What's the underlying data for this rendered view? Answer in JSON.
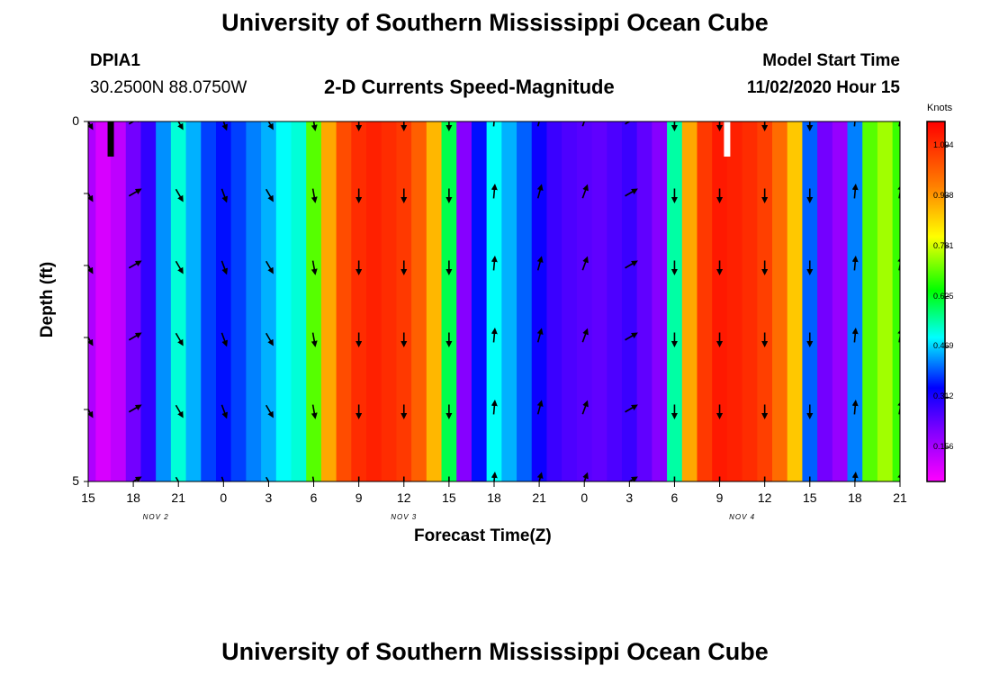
{
  "page": {
    "title_top": "University of Southern Mississippi Ocean Cube",
    "title_bottom": "University of Southern Mississippi Ocean Cube",
    "station": "DPIA1",
    "coords": "30.2500N 88.0750W",
    "subtitle": "2-D Currents Speed-Magnitude",
    "model_start_label": "Model Start Time",
    "model_start_value": "11/02/2020 Hour 15"
  },
  "chart_data": {
    "type": "heatmap",
    "title": "2-D Currents Speed-Magnitude",
    "xlabel": "Forecast Time(Z)",
    "ylabel": "Depth (ft)",
    "x_range": [
      0,
      54
    ],
    "y_range": [
      0,
      5
    ],
    "x_ticks": [
      {
        "t": 0,
        "label": "15"
      },
      {
        "t": 3,
        "label": "18"
      },
      {
        "t": 6,
        "label": "21"
      },
      {
        "t": 9,
        "label": "0"
      },
      {
        "t": 12,
        "label": "3"
      },
      {
        "t": 15,
        "label": "6"
      },
      {
        "t": 18,
        "label": "9"
      },
      {
        "t": 21,
        "label": "12"
      },
      {
        "t": 24,
        "label": "15"
      },
      {
        "t": 27,
        "label": "18"
      },
      {
        "t": 30,
        "label": "21"
      },
      {
        "t": 33,
        "label": "0"
      },
      {
        "t": 36,
        "label": "3"
      },
      {
        "t": 39,
        "label": "6"
      },
      {
        "t": 42,
        "label": "9"
      },
      {
        "t": 45,
        "label": "12"
      },
      {
        "t": 48,
        "label": "15"
      },
      {
        "t": 51,
        "label": "18"
      },
      {
        "t": 54,
        "label": "21"
      }
    ],
    "y_ticks": [
      {
        "d": 0,
        "label": "0"
      },
      {
        "d": 5,
        "label": "5"
      }
    ],
    "date_labels": [
      {
        "t": 4.5,
        "label": "NOV 2"
      },
      {
        "t": 21,
        "label": "NOV 3"
      },
      {
        "t": 43.5,
        "label": "NOV 4"
      }
    ],
    "colorbar": {
      "units": "Knots",
      "min": 0.05,
      "max": 1.17,
      "ticks": [
        0.156,
        0.312,
        0.469,
        0.625,
        0.781,
        0.938,
        1.094
      ],
      "tick_labels": [
        "0.156",
        "0.312",
        "0.469",
        "0.625",
        "0.781",
        "0.938",
        "1.094"
      ]
    },
    "speed_profile": {
      "t": [
        0,
        1,
        2,
        3,
        4,
        5,
        6,
        7,
        8,
        9,
        10,
        11,
        12,
        13,
        14,
        15,
        16,
        17,
        18,
        19,
        20,
        21,
        22,
        23,
        24,
        25,
        26,
        27,
        28,
        29,
        30,
        31,
        32,
        33,
        34,
        35,
        36,
        37,
        38,
        39,
        40,
        41,
        42,
        43,
        44,
        45,
        46,
        47,
        48,
        49,
        50,
        51,
        52,
        53,
        54
      ],
      "speed": [
        0.15,
        0.1,
        0.13,
        0.22,
        0.29,
        0.43,
        0.52,
        0.45,
        0.38,
        0.35,
        0.38,
        0.42,
        0.45,
        0.5,
        0.52,
        0.7,
        0.92,
        1.05,
        1.1,
        1.12,
        1.1,
        1.08,
        1.02,
        0.9,
        0.6,
        0.2,
        0.35,
        0.5,
        0.45,
        0.4,
        0.33,
        0.28,
        0.26,
        0.25,
        0.24,
        0.26,
        0.28,
        0.24,
        0.2,
        0.55,
        0.92,
        1.08,
        1.13,
        1.12,
        1.1,
        1.07,
        1.0,
        0.88,
        0.4,
        0.22,
        0.18,
        0.42,
        0.7,
        0.75,
        0.68
      ]
    },
    "arrows": {
      "depths": [
        0,
        1,
        2,
        3,
        4,
        5
      ],
      "times": [
        {
          "t": 0,
          "angle": 150
        },
        {
          "t": 3,
          "angle": 60
        },
        {
          "t": 6,
          "angle": 150
        },
        {
          "t": 9,
          "angle": 160
        },
        {
          "t": 12,
          "angle": 150
        },
        {
          "t": 15,
          "angle": 170
        },
        {
          "t": 18,
          "angle": 180
        },
        {
          "t": 21,
          "angle": 180
        },
        {
          "t": 24,
          "angle": 180
        },
        {
          "t": 27,
          "angle": 5
        },
        {
          "t": 30,
          "angle": 15
        },
        {
          "t": 33,
          "angle": 20
        },
        {
          "t": 36,
          "angle": 60
        },
        {
          "t": 39,
          "angle": 180
        },
        {
          "t": 42,
          "angle": 180
        },
        {
          "t": 45,
          "angle": 180
        },
        {
          "t": 48,
          "angle": 180
        },
        {
          "t": 51,
          "angle": 5
        },
        {
          "t": 54,
          "angle": 10
        }
      ]
    },
    "markers": [
      {
        "t": 1.5,
        "color": "#000000"
      },
      {
        "t": 42.5,
        "color": "#ffffff"
      }
    ]
  }
}
